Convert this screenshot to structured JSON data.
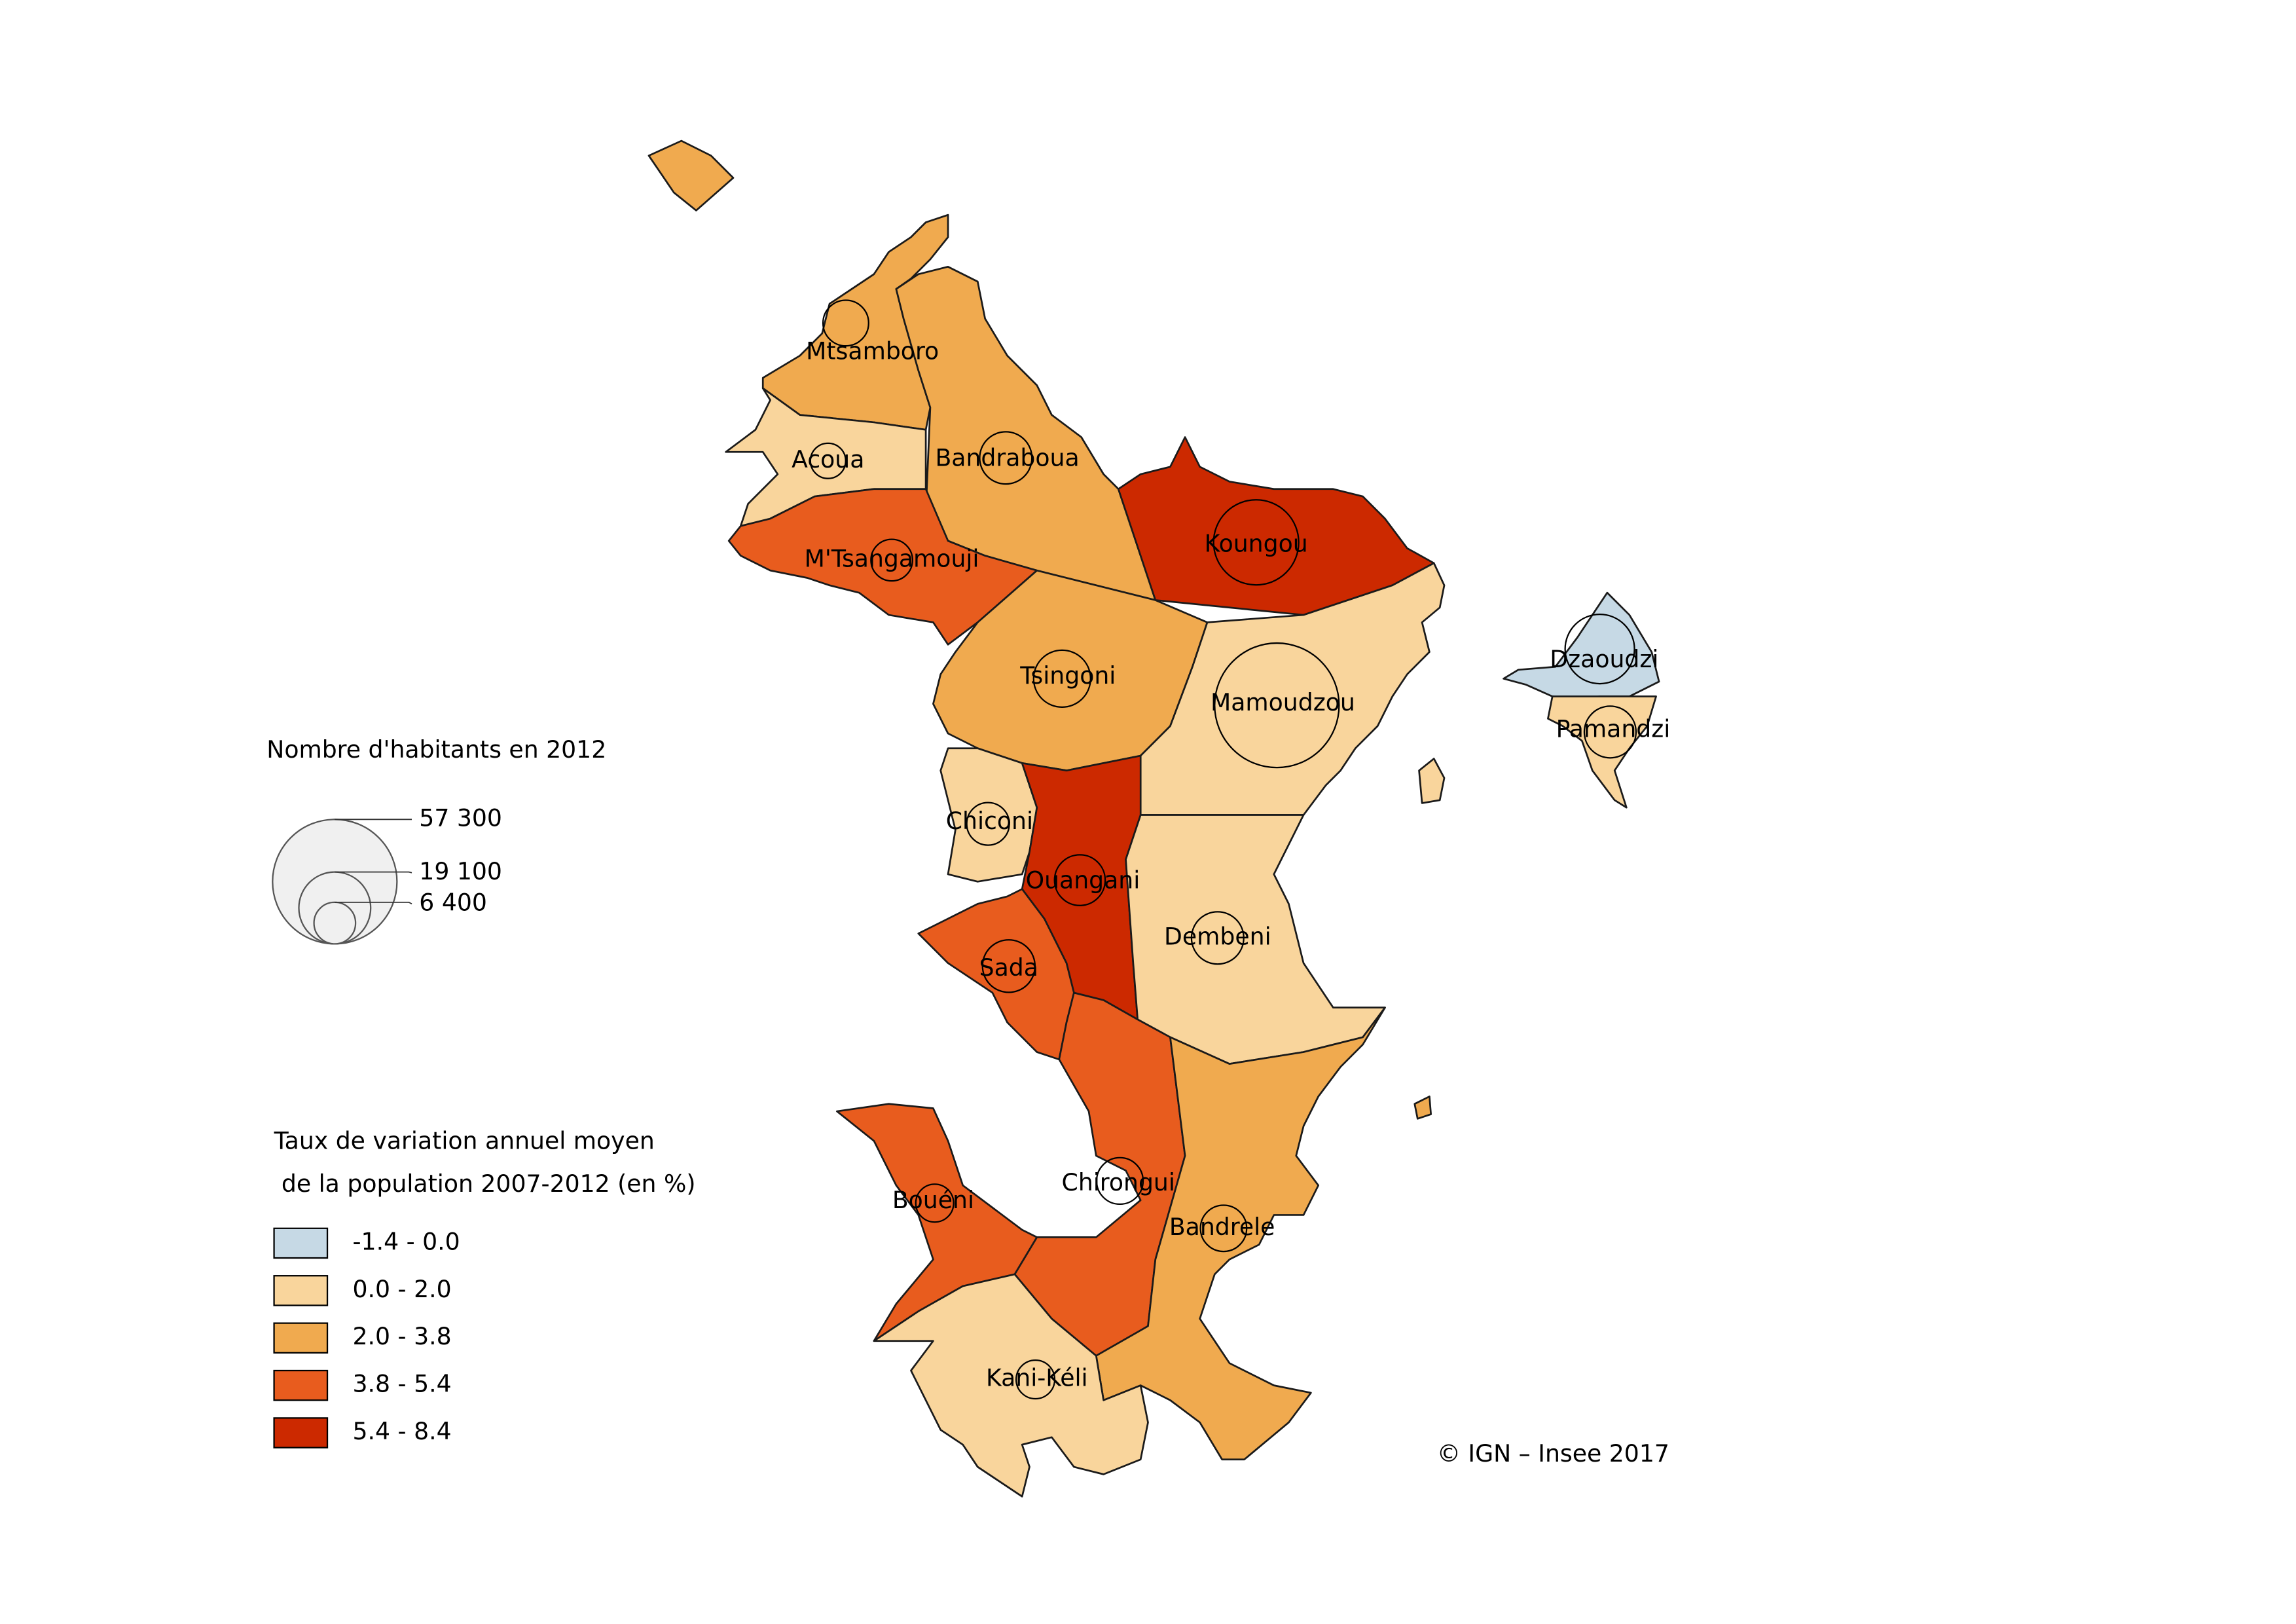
{
  "map": {
    "communes": [
      {
        "name": "Mtsamboro",
        "color": "#f0aa4f",
        "population": 7700
      },
      {
        "name": "Bandraboua",
        "color": "#f0aa4f",
        "population": 10100
      },
      {
        "name": "Acoua",
        "color": "#f9d59c",
        "population": 4600
      },
      {
        "name": "M'Tsangamouji",
        "color": "#e85c1e",
        "population": 6400
      },
      {
        "name": "Koungou",
        "color": "#cc2900",
        "population": 26800
      },
      {
        "name": "Tsingoni",
        "color": "#f0aa4f",
        "population": 12000
      },
      {
        "name": "Mamoudzou",
        "color": "#f9d59c",
        "population": 57300
      },
      {
        "name": "Chiconi",
        "color": "#f9d59c",
        "population": 6700
      },
      {
        "name": "Ouangani",
        "color": "#cc2900",
        "population": 9500
      },
      {
        "name": "Dembeni",
        "color": "#f9d59c",
        "population": 10100
      },
      {
        "name": "Sada",
        "color": "#e85c1e",
        "population": 10200
      },
      {
        "name": "Chirongui",
        "color": "#e85c1e",
        "population": 8000
      },
      {
        "name": "Bandrele",
        "color": "#f0aa4f",
        "population": 7900
      },
      {
        "name": "Bouéni",
        "color": "#e85c1e",
        "population": 5300
      },
      {
        "name": "Kani-Kéli",
        "color": "#f9d59c",
        "population": 5500
      },
      {
        "name": "Dzaoudzi",
        "color": "#c6d9e5",
        "population": 17800
      },
      {
        "name": "Pamandzi",
        "color": "#f9d59c",
        "population": 9900
      }
    ],
    "size_legend": {
      "title": "Nombre d'habitants en 2012",
      "values": [
        {
          "value": 57300,
          "label": "57 300"
        },
        {
          "value": 19100,
          "label": "19 100"
        },
        {
          "value": 6400,
          "label": "6 400"
        }
      ]
    },
    "color_legend": {
      "title_lines": [
        "Taux de variation annuel moyen",
        "de la population 2007-2012 (en %)"
      ],
      "classes": [
        {
          "label": "-1.4 - 0.0",
          "color": "#c6d9e5"
        },
        {
          "label": "0.0 - 2.0",
          "color": "#f9d59c"
        },
        {
          "label": "2.0 - 3.8",
          "color": "#f0aa4f"
        },
        {
          "label": "3.8 - 5.4",
          "color": "#e85c1e"
        },
        {
          "label": "5.4 - 8.4",
          "color": "#cc2900"
        }
      ]
    },
    "source": "© IGN – Insee 2017"
  }
}
